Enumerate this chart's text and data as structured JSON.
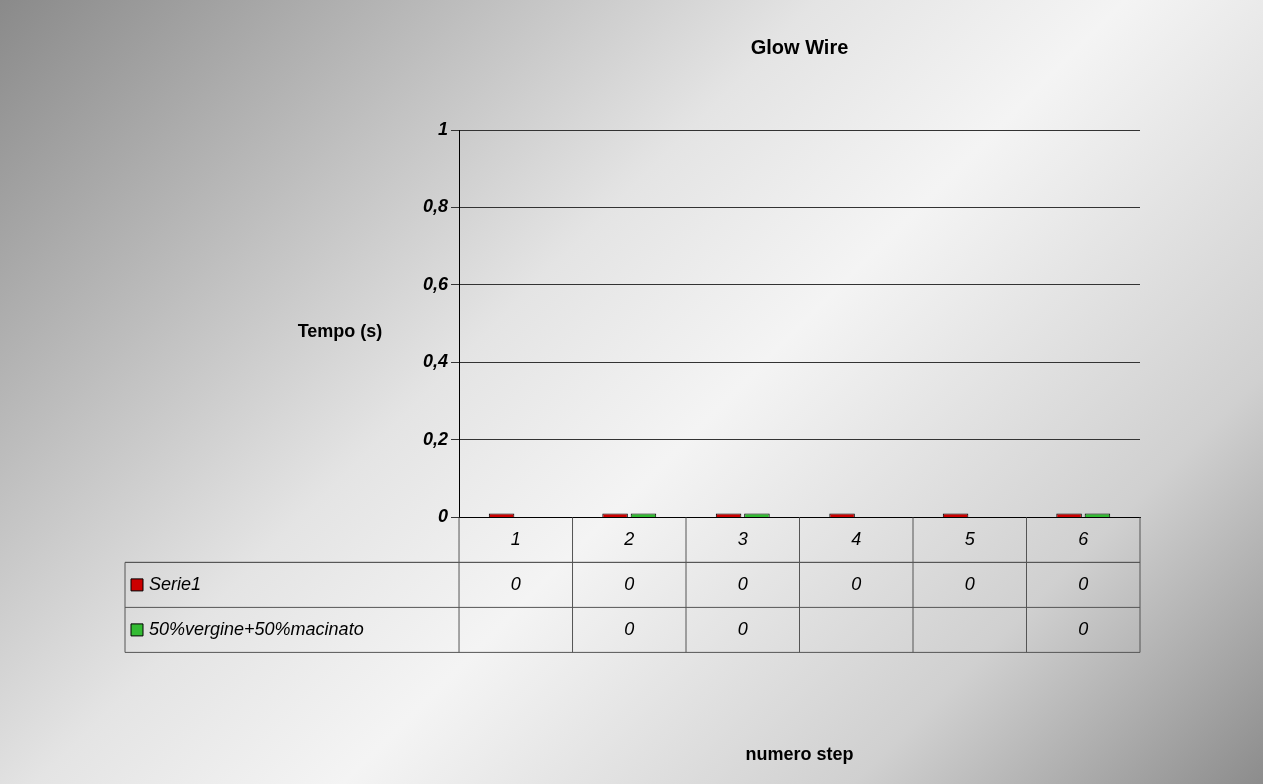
{
  "chart_data": {
    "type": "bar",
    "title": "Glow Wire",
    "annotations": [
      "numero step"
    ],
    "ylabel": "Tempo (s)",
    "categories": [
      "1",
      "2",
      "3",
      "4",
      "5",
      "6"
    ],
    "series": [
      {
        "name": "Serie1",
        "color": "#cc0000",
        "values": [
          0,
          0,
          0,
          0,
          0,
          0
        ]
      },
      {
        "name": "50%vergine+50%macinato",
        "color": "#33bb33",
        "values": [
          null,
          0,
          0,
          null,
          null,
          0
        ]
      }
    ],
    "ylim": [
      0,
      1
    ],
    "yticks": [
      0,
      {
        "value": 0.2,
        "label": "0,2"
      },
      {
        "value": 0.4,
        "label": "0,4"
      },
      {
        "value": 0.6,
        "label": "0,6"
      },
      {
        "value": 0.8,
        "label": "0,8"
      },
      1
    ],
    "grid": "y",
    "data_labels": true,
    "legend": "bottom left"
  }
}
